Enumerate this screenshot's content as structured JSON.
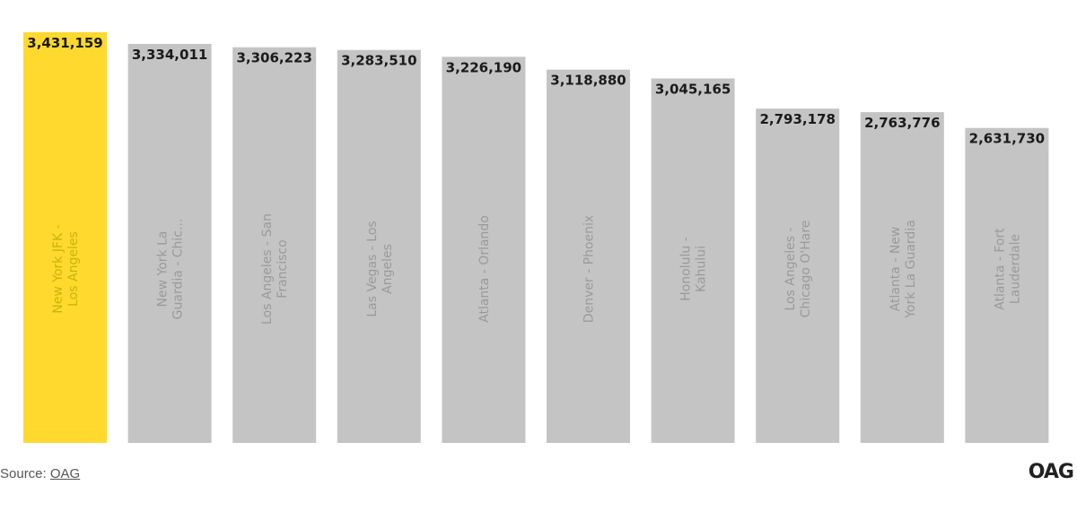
{
  "chart_data": {
    "type": "bar",
    "categories": [
      [
        "New York JFK -",
        "Los Angeles"
      ],
      [
        "New York La",
        "Guardia - Chic..."
      ],
      [
        "Los Angeles - San",
        "Francisco"
      ],
      [
        "Las Vegas - Los",
        "Angeles"
      ],
      [
        "Atlanta - Orlando"
      ],
      [
        "Denver - Phoenix"
      ],
      [
        "Honolulu -",
        "Kahului"
      ],
      [
        "Los Angeles -",
        "Chicago O'Hare"
      ],
      [
        "Atlanta - New",
        "York La Guardia"
      ],
      [
        "Atlanta - Fort",
        "Lauderdale"
      ]
    ],
    "values": [
      3431159,
      3334011,
      3306223,
      3283510,
      3226190,
      3118880,
      3045165,
      2793178,
      2763776,
      2631730
    ],
    "value_labels": [
      "3,431,159",
      "3,334,011",
      "3,306,223",
      "3,283,510",
      "3,226,190",
      "3,118,880",
      "3,045,165",
      "2,793,178",
      "2,763,776",
      "2,631,730"
    ],
    "highlight_index": 0,
    "colors": {
      "highlight": "#FFD92E",
      "default": "#C4C4C4"
    },
    "legend": "none",
    "grid": false
  },
  "source": {
    "prefix": "Source: ",
    "link": "OAG"
  },
  "brand": {
    "logo_text": "OAG"
  }
}
